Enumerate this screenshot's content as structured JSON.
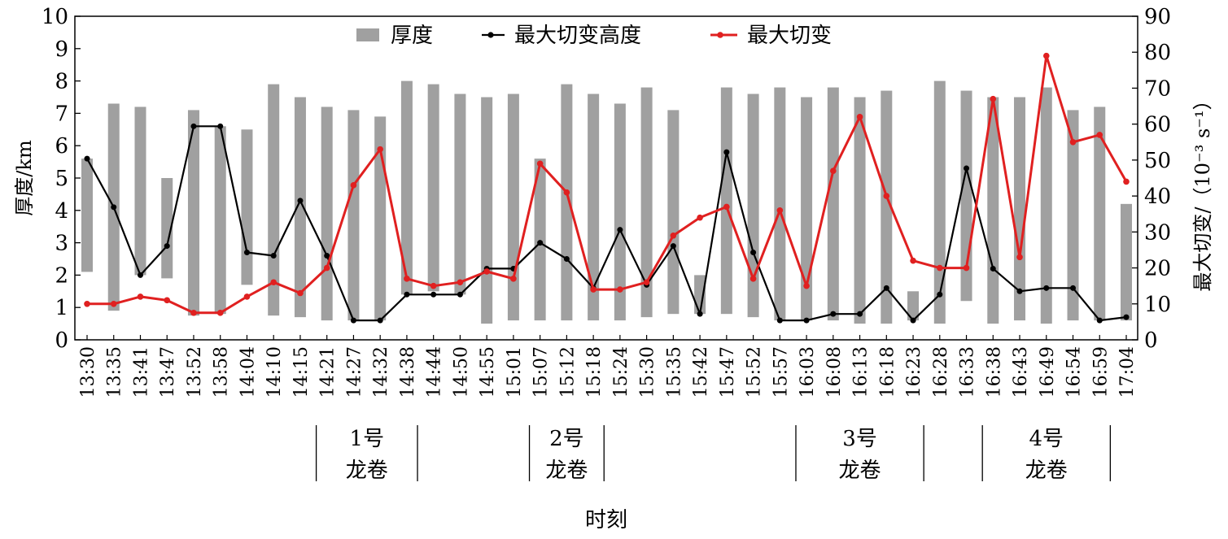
{
  "chart_data": {
    "type": "bar+line",
    "xlabel": "时刻",
    "ylabel_left": "厚度/km",
    "ylabel_right": "最大切变/（10⁻³ s⁻¹）",
    "ylim_left": [
      0,
      10
    ],
    "ylim_right": [
      0,
      90
    ],
    "yticks_left": [
      "0",
      "1",
      "2",
      "3",
      "4",
      "5",
      "6",
      "7",
      "8",
      "9",
      "10"
    ],
    "yticks_right": [
      "0",
      "10",
      "20",
      "30",
      "40",
      "50",
      "60",
      "70",
      "80",
      "90"
    ],
    "grid": false,
    "legend_position": "top-center",
    "categories": [
      "13:30",
      "13:35",
      "13:41",
      "13:47",
      "13:52",
      "13:58",
      "14:04",
      "14:10",
      "14:15",
      "14:21",
      "14:27",
      "14:32",
      "14:38",
      "14:44",
      "14:50",
      "14:55",
      "15:01",
      "15:07",
      "15:12",
      "15:18",
      "15:24",
      "15:30",
      "15:35",
      "15:42",
      "15:47",
      "15:52",
      "15:57",
      "16:03",
      "16:08",
      "16:13",
      "16:18",
      "16:23",
      "16:28",
      "16:33",
      "16:38",
      "16:43",
      "16:49",
      "16:54",
      "16:59",
      "17:04"
    ],
    "bars": {
      "name": "厚度",
      "color": "#a0a0a0",
      "base": [
        2.1,
        0.9,
        2.0,
        1.9,
        0.75,
        0.8,
        1.7,
        0.75,
        0.7,
        0.6,
        0.6,
        0.6,
        1.4,
        1.5,
        1.4,
        0.5,
        0.6,
        0.6,
        0.6,
        0.6,
        0.6,
        0.7,
        0.8,
        0.8,
        0.8,
        0.7,
        0.6,
        0.6,
        0.6,
        0.5,
        0.5,
        0.6,
        0.5,
        1.2,
        0.5,
        0.6,
        0.5,
        0.6,
        0.6,
        0.6
      ],
      "top": [
        5.6,
        7.3,
        7.2,
        5.0,
        7.1,
        6.6,
        6.5,
        7.9,
        7.5,
        7.2,
        7.1,
        6.9,
        8.0,
        7.9,
        7.6,
        7.5,
        7.6,
        5.6,
        7.9,
        7.6,
        7.3,
        7.8,
        7.1,
        2.0,
        7.8,
        7.6,
        7.8,
        7.5,
        7.8,
        7.5,
        7.7,
        1.5,
        8.0,
        7.7,
        7.5,
        7.5,
        7.8,
        7.1,
        7.2,
        4.2
      ]
    },
    "series": [
      {
        "name": "最大切变高度",
        "color": "#000000",
        "axis": "left",
        "values": [
          5.6,
          4.1,
          2.0,
          2.9,
          6.6,
          6.6,
          2.7,
          2.6,
          4.3,
          2.6,
          0.6,
          0.6,
          1.4,
          1.4,
          1.4,
          2.2,
          2.2,
          3.0,
          2.5,
          1.6,
          3.4,
          1.7,
          2.9,
          0.8,
          5.8,
          2.7,
          0.6,
          0.6,
          0.8,
          0.8,
          1.6,
          0.6,
          1.4,
          5.3,
          2.2,
          1.5,
          1.6,
          1.6,
          0.6,
          0.7
        ]
      },
      {
        "name": "最大切变",
        "color": "#e02020",
        "axis": "right",
        "values": [
          10,
          10,
          12,
          11,
          7.5,
          7.5,
          12,
          16,
          13,
          20,
          43,
          53,
          17,
          15,
          16,
          19,
          17,
          49,
          41,
          14,
          14,
          16,
          29,
          34,
          37,
          17,
          36,
          15,
          47,
          62,
          40,
          22,
          20,
          20,
          67,
          23,
          79,
          55,
          57,
          44
        ]
      }
    ],
    "annotations": [
      {
        "label_line1": "1号",
        "label_line2": "龙卷",
        "from": "14:21",
        "to": "14:38"
      },
      {
        "label_line1": "2号",
        "label_line2": "龙卷",
        "from": "15:07",
        "to": "15:18"
      },
      {
        "label_line1": "3号",
        "label_line2": "龙卷",
        "from": "16:03",
        "to": "16:23"
      },
      {
        "label_line1": "4号",
        "label_line2": "龙卷",
        "from": "16:38",
        "to": "16:59"
      }
    ]
  }
}
